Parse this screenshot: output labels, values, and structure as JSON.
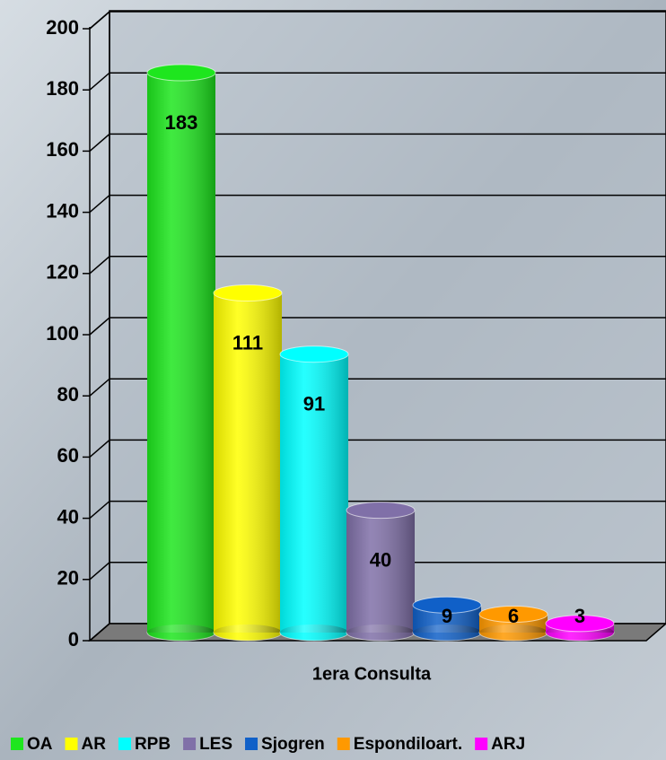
{
  "chart_data": {
    "type": "bar3d",
    "categories": [
      "1era Consulta"
    ],
    "series": [
      {
        "name": "OA",
        "color": "#1ee61e",
        "values": [
          183
        ]
      },
      {
        "name": "AR",
        "color": "#ffff00",
        "values": [
          111
        ]
      },
      {
        "name": "RPB",
        "color": "#00ffff",
        "values": [
          91
        ]
      },
      {
        "name": "LES",
        "color": "#8070a8",
        "values": [
          40
        ]
      },
      {
        "name": "Sjogren",
        "color": "#1060c8",
        "values": [
          9
        ]
      },
      {
        "name": "Espondiloart.",
        "color": "#ff9900",
        "values": [
          6
        ]
      },
      {
        "name": "ARJ",
        "color": "#ff00ff",
        "values": [
          3
        ]
      }
    ],
    "ylim": [
      0,
      200
    ],
    "yticks": [
      0,
      20,
      40,
      60,
      80,
      100,
      120,
      140,
      160,
      180,
      200
    ],
    "grid": true,
    "legend": "bottom"
  }
}
